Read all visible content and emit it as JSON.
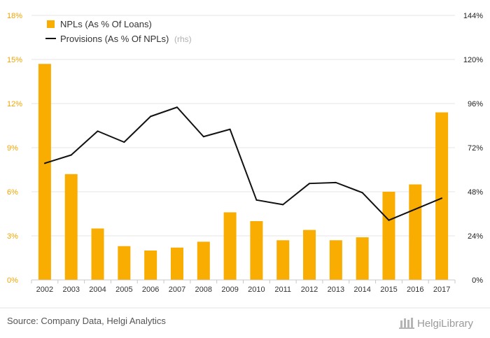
{
  "chart_data": {
    "type": "bar",
    "categories": [
      "2002",
      "2003",
      "2004",
      "2005",
      "2006",
      "2007",
      "2008",
      "2009",
      "2010",
      "2011",
      "2012",
      "2013",
      "2014",
      "2015",
      "2016",
      "2017"
    ],
    "series": [
      {
        "name": "NPLs (As % Of Loans)",
        "type": "bar",
        "axis": "left",
        "color": "#f9ad00",
        "values": [
          14.7,
          7.2,
          3.5,
          2.3,
          2.0,
          2.2,
          2.6,
          4.6,
          4.0,
          2.7,
          3.4,
          2.7,
          2.9,
          6.0,
          6.5,
          11.4
        ]
      },
      {
        "name": "Provisions (As % Of NPLs)",
        "name_suffix": "(rhs)",
        "type": "line",
        "axis": "right",
        "color": "#111111",
        "values": [
          63.5,
          68,
          81,
          75,
          89,
          94,
          78,
          82,
          43.5,
          41,
          52.5,
          53,
          47.5,
          32.5,
          38.5,
          44.5
        ]
      }
    ],
    "y_left": {
      "min": 0,
      "max": 18,
      "ticks": [
        "0%",
        "3%",
        "6%",
        "9%",
        "12%",
        "15%",
        "18%"
      ],
      "color": "#f0a500"
    },
    "y_right": {
      "min": 0,
      "max": 144,
      "ticks": [
        "0%",
        "24%",
        "48%",
        "72%",
        "96%",
        "120%",
        "144%"
      ],
      "color": "#222222"
    },
    "grid": true,
    "legend_position": "top-left"
  },
  "footer": {
    "source": "Source: Company Data, Helgi Analytics",
    "brand": "HelgiLibrary"
  }
}
